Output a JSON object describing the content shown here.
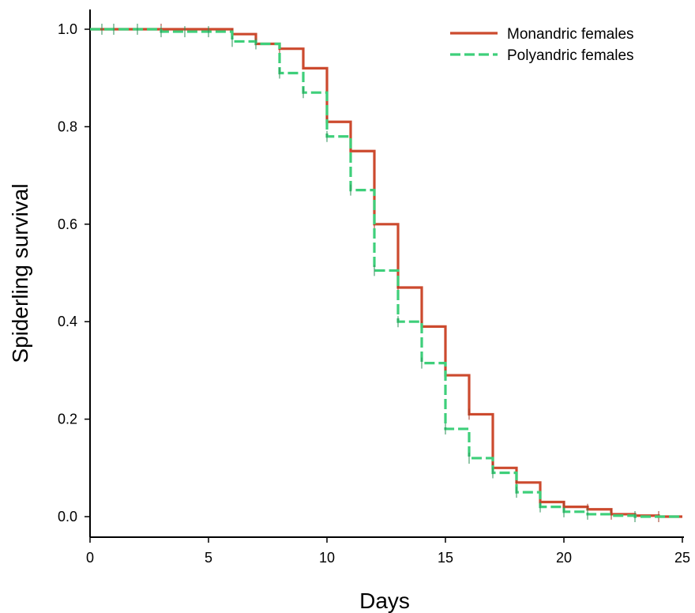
{
  "chart_data": {
    "type": "line",
    "title": "",
    "xlabel": "Days",
    "ylabel": "Spiderling survival",
    "xlim": [
      0,
      25
    ],
    "ylim": [
      0,
      1
    ],
    "x_ticks": [
      0,
      5,
      10,
      15,
      20,
      25
    ],
    "y_ticks": [
      0.0,
      0.2,
      0.4,
      0.6,
      0.8,
      1.0
    ],
    "y_tick_labels": [
      "0.0",
      "0.2",
      "0.4",
      "0.6",
      "0.8",
      "1.0"
    ],
    "grid": false,
    "legend_position": "top-right",
    "step": true,
    "series": [
      {
        "name": "Monandric females",
        "color": "#cc4a2e",
        "dash": "solid",
        "x": [
          0,
          6,
          7,
          8,
          9,
          10,
          11,
          12,
          13,
          14,
          15,
          16,
          17,
          18,
          19,
          20,
          21,
          22,
          23,
          24,
          25
        ],
        "y": [
          1.0,
          0.99,
          0.97,
          0.96,
          0.92,
          0.81,
          0.75,
          0.6,
          0.47,
          0.39,
          0.29,
          0.21,
          0.1,
          0.07,
          0.03,
          0.02,
          0.015,
          0.005,
          0.002,
          0.0,
          0.0
        ],
        "censored_x": [
          1,
          3,
          6,
          8,
          10,
          12,
          13,
          14,
          15,
          16,
          17,
          18,
          20,
          21,
          22,
          24
        ]
      },
      {
        "name": "Polyandric females",
        "color": "#3ecf7a",
        "dash": "dashed",
        "x": [
          0,
          3,
          6,
          7,
          8,
          9,
          10,
          11,
          12,
          13,
          14,
          15,
          16,
          17,
          18,
          19,
          20,
          21,
          22,
          23,
          25
        ],
        "y": [
          1.0,
          0.995,
          0.975,
          0.97,
          0.91,
          0.87,
          0.78,
          0.67,
          0.505,
          0.4,
          0.315,
          0.18,
          0.12,
          0.09,
          0.05,
          0.02,
          0.01,
          0.005,
          0.002,
          0.0,
          0.0
        ],
        "censored_x": [
          0.5,
          1,
          2,
          3,
          4,
          5,
          6,
          7,
          8,
          9,
          10,
          11,
          12,
          13,
          14,
          15,
          16,
          17,
          18,
          19,
          20,
          21,
          23
        ]
      }
    ]
  }
}
